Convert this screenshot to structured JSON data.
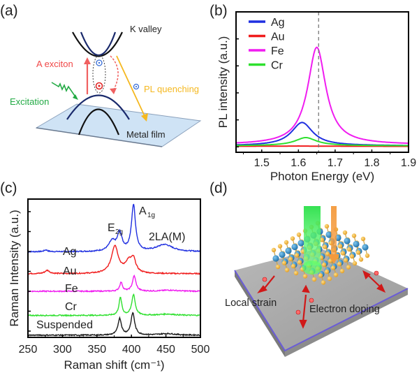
{
  "figure": {
    "panels": {
      "a": {
        "label": "(a)",
        "texts": {
          "k_valley": "K valley",
          "a_exciton": "A exciton",
          "excitation": "Excitation",
          "pl_quenching": "PL quenching",
          "metal_film": "Metal film"
        },
        "colors": {
          "exciton": "#f04848",
          "excitation": "#22aa44",
          "quenching": "#f5b820",
          "film": "#cfe3f5",
          "conduction": "#1a2a6c",
          "electron": "#3a6fd8",
          "hole": "#e02020"
        }
      },
      "b": {
        "label": "(b)"
      },
      "c": {
        "label": "(c)"
      },
      "d": {
        "label": "(d)",
        "texts": {
          "local_strain": "Local strain",
          "electron_doping": "Electron doping"
        },
        "colors": {
          "substrate": "#a8a8a8",
          "edge": "#6a5cd8",
          "metal_atom": "#1f7fc0",
          "chalcogen_atom": "#f2b233",
          "green_beam": "#2be04a",
          "orange_beam": "#f49a3c",
          "arrow": "#d01818"
        }
      }
    }
  },
  "chart_data": [
    {
      "panel": "b",
      "type": "line",
      "title": "",
      "xlabel": "Photon Energy (eV)",
      "ylabel": "PL intensity (a.u.)",
      "xlim": [
        1.43,
        1.9
      ],
      "ylim": [
        -0.05,
        1.25
      ],
      "xticks": [
        1.5,
        1.6,
        1.7,
        1.8,
        1.9
      ],
      "xtick_labels": [
        "1.5",
        "1.6",
        "1.7",
        "1.8",
        "1.9"
      ],
      "yticks": [
        0,
        0.25,
        0.5,
        0.75,
        1.0
      ],
      "ytick_labels": [],
      "vline": 1.655,
      "legend": "top-left",
      "grid": false,
      "series": [
        {
          "name": "Ag",
          "color": "#1f2fe0",
          "peak_x": 1.61,
          "amplitude": 0.21,
          "width": 0.035,
          "baseline": 0.01
        },
        {
          "name": "Au",
          "color": "#f01c1c",
          "peak_x": 1.6,
          "amplitude": 0.0,
          "width": 0.04,
          "baseline": 0.005
        },
        {
          "name": "Fe",
          "color": "#f01cf0",
          "peak_x": 1.65,
          "amplitude": 0.89,
          "width": 0.03,
          "baseline": 0.02
        },
        {
          "name": "Cr",
          "color": "#2ee02e",
          "peak_x": 1.62,
          "amplitude": 0.07,
          "width": 0.035,
          "baseline": 0.01
        }
      ]
    },
    {
      "panel": "c",
      "type": "line",
      "title": "",
      "xlabel": "Raman shift (cm⁻¹)",
      "ylabel": "Raman Intensity (a.u.)",
      "xlim": [
        250,
        500
      ],
      "ylim": [
        0,
        6.3
      ],
      "xticks": [
        250,
        300,
        350,
        400,
        450,
        500
      ],
      "xtick_labels": [
        "250",
        "300",
        "350",
        "400",
        "450",
        "500"
      ],
      "annotations": [
        "E2g",
        "A1g",
        "2LA(M)"
      ],
      "annotation_parts": {
        "e2g_main": "E",
        "e2g_sub": "2g",
        "a1g_main": "A",
        "a1g_sub": "1g",
        "la": "2LA(M)"
      },
      "grid": false,
      "series": [
        {
          "name": "Ag",
          "color": "#1f2fe0",
          "offset": 3.9,
          "peaks": [
            [
              276,
              0.08,
              3
            ],
            [
              372,
              0.45,
              6
            ],
            [
              383,
              0.8,
              4
            ],
            [
              403,
              2.1,
              3.5
            ],
            [
              448,
              0.32,
              14
            ]
          ]
        },
        {
          "name": "Au",
          "color": "#f01c1c",
          "offset": 2.9,
          "peaks": [
            [
              278,
              0.15,
              4
            ],
            [
              376,
              1.25,
              6
            ],
            [
              396,
              0.5,
              6
            ],
            [
              403,
              0.55,
              4
            ]
          ]
        },
        {
          "name": "Fe",
          "color": "#f01cf0",
          "offset": 2.1,
          "peaks": [
            [
              385,
              0.4,
              2.5
            ],
            [
              404,
              0.7,
              3
            ],
            [
              455,
              0.05,
              14
            ]
          ]
        },
        {
          "name": "Cr",
          "color": "#2ee02e",
          "offset": 1.0,
          "peaks": [
            [
              384,
              0.8,
              2.5
            ],
            [
              403,
              0.95,
              3
            ],
            [
              452,
              0.06,
              14
            ]
          ]
        },
        {
          "name": "Suspended",
          "color": "#1a1a1a",
          "offset": 0.1,
          "peaks": [
            [
              383,
              0.75,
              3
            ],
            [
              402,
              1.0,
              3.2
            ],
            [
              452,
              0.07,
              14
            ]
          ]
        }
      ]
    }
  ]
}
